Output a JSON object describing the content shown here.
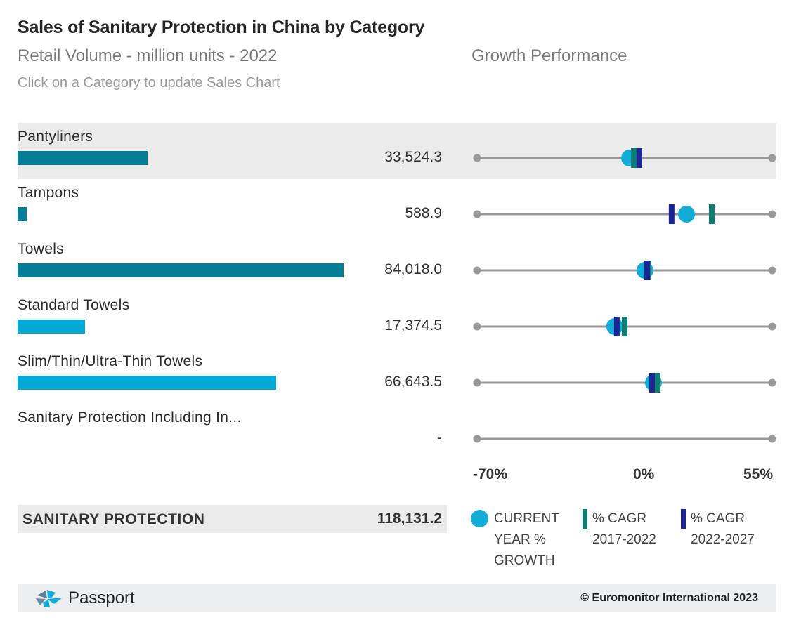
{
  "header": {
    "title": "Sales of Sanitary Protection in China by Category",
    "subtitle": "Retail Volume - million units - 2022",
    "growth_title": "Growth Performance",
    "hint": "Click on a Category to update Sales Chart"
  },
  "colors": {
    "bar_parent": "#047d97",
    "bar_child": "#00a9d6",
    "current_growth": "#12acd9",
    "cagr_past": "#0f7e72",
    "cagr_future": "#1b2596",
    "track": "#999999",
    "row_selected_bg": "#ebebec"
  },
  "chart_data": [
    {
      "type": "bar",
      "title": "Retail Volume - million units - 2022",
      "orientation": "horizontal",
      "categories": [
        "Pantyliners",
        "Tampons",
        "Towels",
        "Standard Towels",
        "Slim/Thin/Ultra-Thin Towels",
        "Sanitary Protection Including In..."
      ],
      "values": [
        33524.3,
        588.9,
        84018.0,
        17374.5,
        66643.5,
        null
      ],
      "value_labels": [
        "33,524.3",
        "588.9",
        "84,018.0",
        "17,374.5",
        "66,643.5",
        "-"
      ],
      "level": [
        "parent",
        "parent",
        "parent",
        "child",
        "child",
        "parent"
      ],
      "selected": "Pantyliners",
      "total": {
        "label": "SANITARY PROTECTION",
        "value": 118131.2,
        "value_label": "118,131.2"
      }
    },
    {
      "type": "scatter",
      "title": "Growth Performance",
      "xlim": [
        -70,
        55
      ],
      "x_ticks": [
        "-70%",
        "0%",
        "55%"
      ],
      "categories": [
        "Pantyliners",
        "Tampons",
        "Towels",
        "Standard Towels",
        "Slim/Thin/Ultra-Thin Towels",
        "Sanitary Protection Including In..."
      ],
      "series": [
        {
          "name": "CURRENT YEAR % GROWTH",
          "marker": "circle",
          "values": [
            -5.4,
            18.7,
            1.1,
            -11.7,
            4.7,
            null
          ]
        },
        {
          "name": "% CAGR 2017-2022",
          "marker": "bar",
          "values": [
            -3.6,
            29.4,
            2.5,
            -7.5,
            6.5,
            null
          ]
        },
        {
          "name": "% CAGR 2022-2027",
          "marker": "bar",
          "values": [
            -1.3,
            12.4,
            2.0,
            -10.8,
            4.1,
            null
          ]
        }
      ]
    }
  ],
  "legend": {
    "items": [
      {
        "lines": [
          "CURRENT",
          "YEAR %",
          "GROWTH"
        ]
      },
      {
        "lines": [
          "% CAGR",
          "2017-2022"
        ]
      },
      {
        "lines": [
          "% CAGR",
          "2022-2027"
        ]
      }
    ]
  },
  "footer": {
    "brand": "Passport",
    "copyright": "© Euromonitor International 2023"
  }
}
